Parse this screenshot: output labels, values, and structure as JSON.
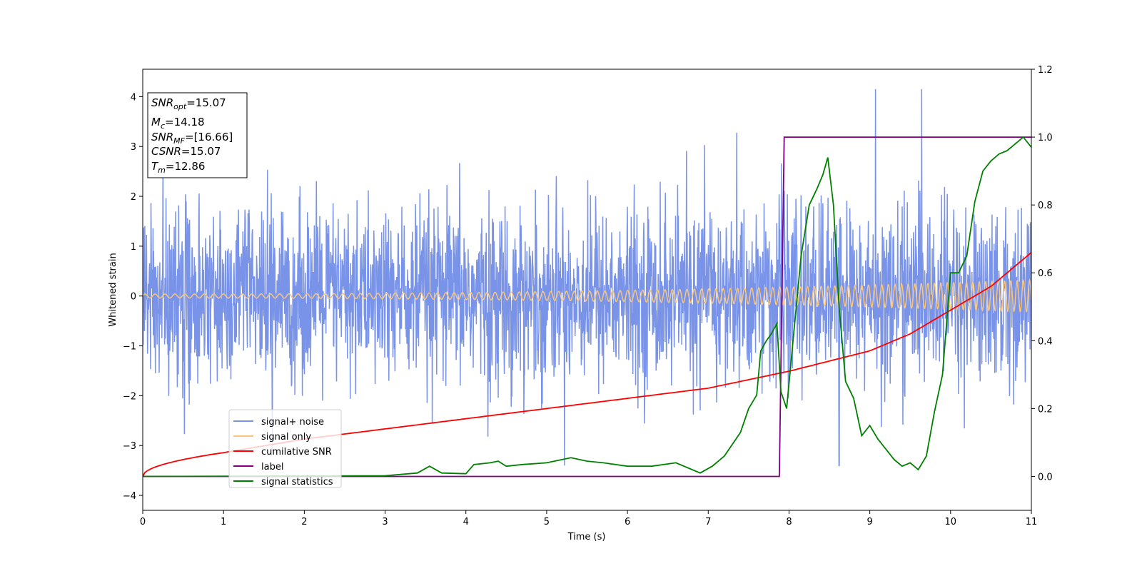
{
  "chart_data": {
    "type": "line",
    "xlabel": "Time (s)",
    "ylabel": "Whitened strain",
    "xlim": [
      0,
      11
    ],
    "ylim_left": [
      -4.3,
      4.55
    ],
    "ylim_right": [
      -0.1,
      1.2
    ],
    "x_ticks": [
      "0",
      "1",
      "2",
      "3",
      "4",
      "5",
      "6",
      "7",
      "8",
      "9",
      "10",
      "11"
    ],
    "y_ticks_left": [
      "−4",
      "−3",
      "−2",
      "−1",
      "0",
      "1",
      "2",
      "3",
      "4"
    ],
    "y_ticks_right": [
      "0.0",
      "0.2",
      "0.4",
      "0.6",
      "0.8",
      "1.0",
      "1.2"
    ],
    "grid": false,
    "legend_position": "lower left",
    "annotation": [
      {
        "var": "SNR",
        "sub": "opt",
        "value": "=15.07"
      },
      {
        "var": "M",
        "sub": "c",
        "value": "=14.18"
      },
      {
        "var": "SNR",
        "sub": "MF",
        "value": "=[16.66]"
      },
      {
        "var": "CSNR",
        "sub": "",
        "value": "=15.07"
      },
      {
        "var": "T",
        "sub": "m",
        "value": "=12.86"
      }
    ],
    "series": [
      {
        "name": "signal+ noise",
        "color": "#7893e8",
        "axis": "left",
        "description_envelope": {
          "typical_amplitude": 2.3,
          "spike_max": 4.15,
          "spike_time": 9.07,
          "spike_min": -3.4,
          "spike_min_time": 8.62
        }
      },
      {
        "name": "signal only",
        "color": "#f7c57f",
        "axis": "left",
        "amplitude_start": 0.04,
        "amplitude_end": 0.32,
        "freq_start_hz": 8,
        "freq_end_hz": 13
      },
      {
        "name": "cumilative SNR",
        "color": "#ff0000",
        "axis": "right",
        "x": [
          0,
          0.5,
          1,
          2,
          3,
          4,
          5,
          6,
          7,
          7.5,
          8,
          8.5,
          9,
          9.5,
          10,
          10.5,
          11
        ],
        "y": [
          0.0,
          0.05,
          0.07,
          0.11,
          0.14,
          0.17,
          0.2,
          0.23,
          0.26,
          0.285,
          0.31,
          0.34,
          0.37,
          0.42,
          0.49,
          0.56,
          0.66
        ]
      },
      {
        "name": "label",
        "color": "#800080",
        "axis": "right",
        "x": [
          0,
          7.88,
          7.94,
          11
        ],
        "y": [
          0,
          0,
          1,
          1
        ]
      },
      {
        "name": "signal statistics",
        "color": "#008000",
        "axis": "right",
        "x": [
          0,
          3.0,
          3.4,
          3.55,
          3.7,
          4.0,
          4.1,
          4.3,
          4.4,
          4.5,
          4.7,
          5.0,
          5.3,
          5.5,
          5.7,
          6.0,
          6.3,
          6.6,
          6.9,
          7.05,
          7.2,
          7.4,
          7.5,
          7.6,
          7.65,
          7.72,
          7.78,
          7.85,
          7.9,
          7.97,
          8.05,
          8.15,
          8.25,
          8.35,
          8.42,
          8.48,
          8.55,
          8.62,
          8.7,
          8.8,
          8.9,
          9.0,
          9.1,
          9.2,
          9.3,
          9.4,
          9.5,
          9.6,
          9.7,
          9.8,
          9.9,
          10.0,
          10.1,
          10.2,
          10.3,
          10.4,
          10.5,
          10.6,
          10.7,
          10.8,
          10.9,
          11.0
        ],
        "y": [
          0.0,
          0.002,
          0.01,
          0.03,
          0.01,
          0.008,
          0.035,
          0.04,
          0.045,
          0.03,
          0.035,
          0.04,
          0.055,
          0.045,
          0.04,
          0.03,
          0.03,
          0.04,
          0.01,
          0.03,
          0.06,
          0.13,
          0.2,
          0.24,
          0.37,
          0.4,
          0.42,
          0.45,
          0.25,
          0.2,
          0.4,
          0.65,
          0.8,
          0.85,
          0.89,
          0.94,
          0.8,
          0.5,
          0.28,
          0.23,
          0.12,
          0.15,
          0.11,
          0.08,
          0.05,
          0.03,
          0.04,
          0.02,
          0.06,
          0.19,
          0.3,
          0.6,
          0.6,
          0.65,
          0.81,
          0.9,
          0.93,
          0.95,
          0.96,
          0.98,
          1.0,
          0.97
        ]
      }
    ]
  }
}
